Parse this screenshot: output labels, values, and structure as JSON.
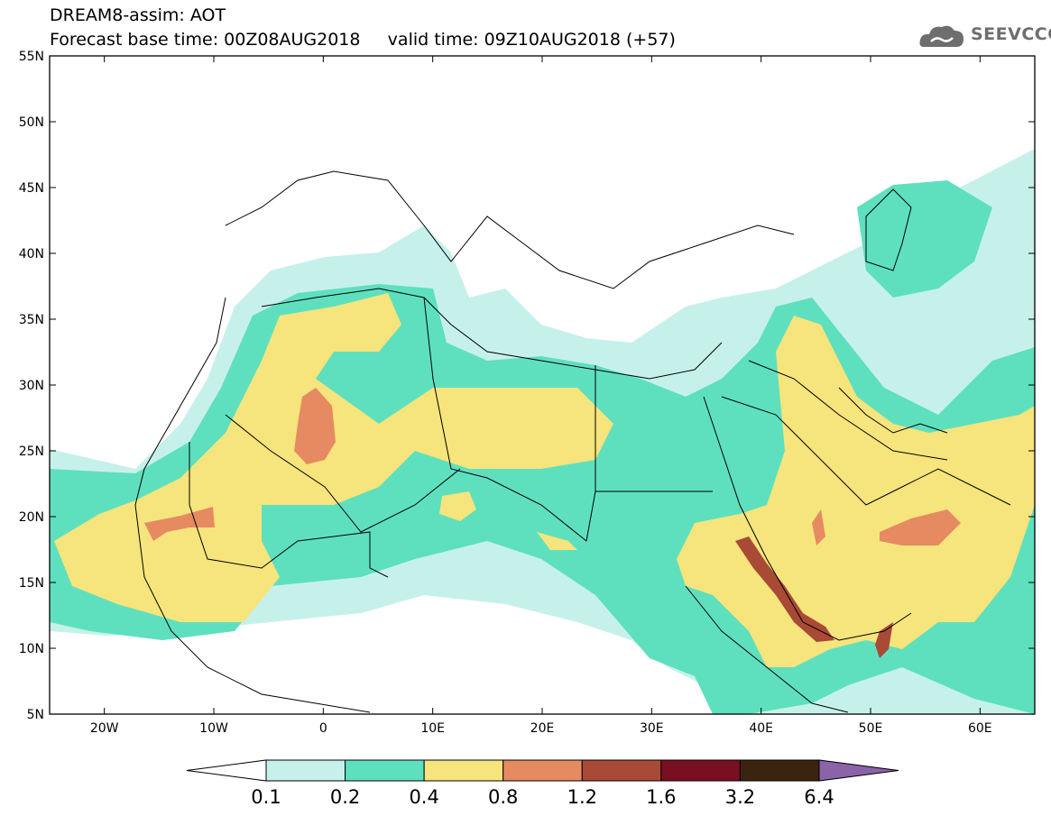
{
  "header": {
    "line1": "DREAM8-assim: AOT",
    "line2": "Forecast base time: 00Z08AUG2018     valid time: 09Z10AUG2018 (+57)",
    "logo_text": "SEEVCCC",
    "logo_icon": "cloud-icon"
  },
  "map": {
    "variable": "AOT",
    "lon_range": [
      -25,
      65
    ],
    "lat_range": [
      5,
      55
    ],
    "lon_ticks": [
      {
        "value": -20,
        "label": "20W"
      },
      {
        "value": -10,
        "label": "10W"
      },
      {
        "value": 0,
        "label": "0"
      },
      {
        "value": 10,
        "label": "10E"
      },
      {
        "value": 20,
        "label": "20E"
      },
      {
        "value": 30,
        "label": "30E"
      },
      {
        "value": 40,
        "label": "40E"
      },
      {
        "value": 50,
        "label": "50E"
      },
      {
        "value": 60,
        "label": "60E"
      }
    ],
    "lat_ticks": [
      {
        "value": 55,
        "label": "55N"
      },
      {
        "value": 50,
        "label": "50N"
      },
      {
        "value": 45,
        "label": "45N"
      },
      {
        "value": 40,
        "label": "40N"
      },
      {
        "value": 35,
        "label": "35N"
      },
      {
        "value": 30,
        "label": "30N"
      },
      {
        "value": 25,
        "label": "25N"
      },
      {
        "value": 20,
        "label": "20N"
      },
      {
        "value": 15,
        "label": "15N"
      },
      {
        "value": 10,
        "label": "10N"
      },
      {
        "value": 5,
        "label": "5N"
      }
    ]
  },
  "colorbar": {
    "levels": [
      "0.1",
      "0.2",
      "0.4",
      "0.8",
      "1.2",
      "1.6",
      "3.2",
      "6.4"
    ],
    "colors": [
      "#c6f1ea",
      "#5ee0be",
      "#f6e47c",
      "#e68a62",
      "#a84a36",
      "#7a0f22",
      "#3a2410",
      "#8a63a8"
    ],
    "under_color": "#ffffff"
  }
}
